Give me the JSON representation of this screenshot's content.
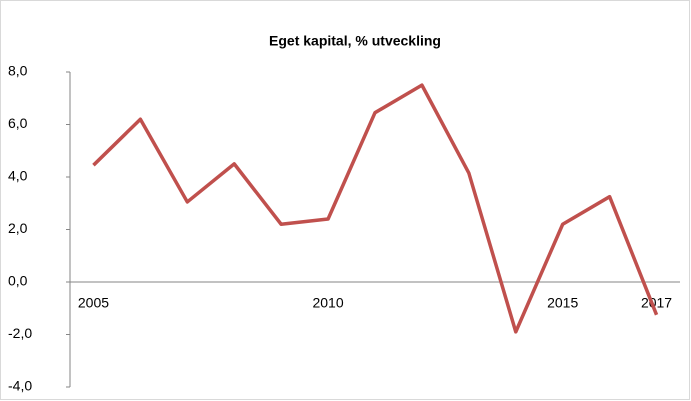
{
  "chart_data": {
    "type": "line",
    "title": "Eget kapital, % utveckling",
    "categories": [
      "2005",
      null,
      null,
      null,
      null,
      "2010",
      null,
      null,
      null,
      null,
      "2015",
      null,
      "2017"
    ],
    "series": [
      {
        "name": "Eget kapital",
        "color": "#c0504d",
        "values": [
          4.45,
          6.2,
          3.05,
          4.5,
          2.2,
          2.4,
          6.45,
          7.5,
          4.15,
          -1.9,
          2.2,
          3.25,
          -1.25
        ]
      }
    ],
    "ylim": [
      -4,
      8
    ],
    "yticks": [
      {
        "value": -4,
        "label": "-4,0"
      },
      {
        "value": -2,
        "label": "-2,0"
      },
      {
        "value": 0,
        "label": "0,0"
      },
      {
        "value": 2,
        "label": "2,0"
      },
      {
        "value": 4,
        "label": "4,0"
      },
      {
        "value": 6,
        "label": "6,0"
      },
      {
        "value": 8,
        "label": "8,0"
      }
    ],
    "grid": false
  }
}
